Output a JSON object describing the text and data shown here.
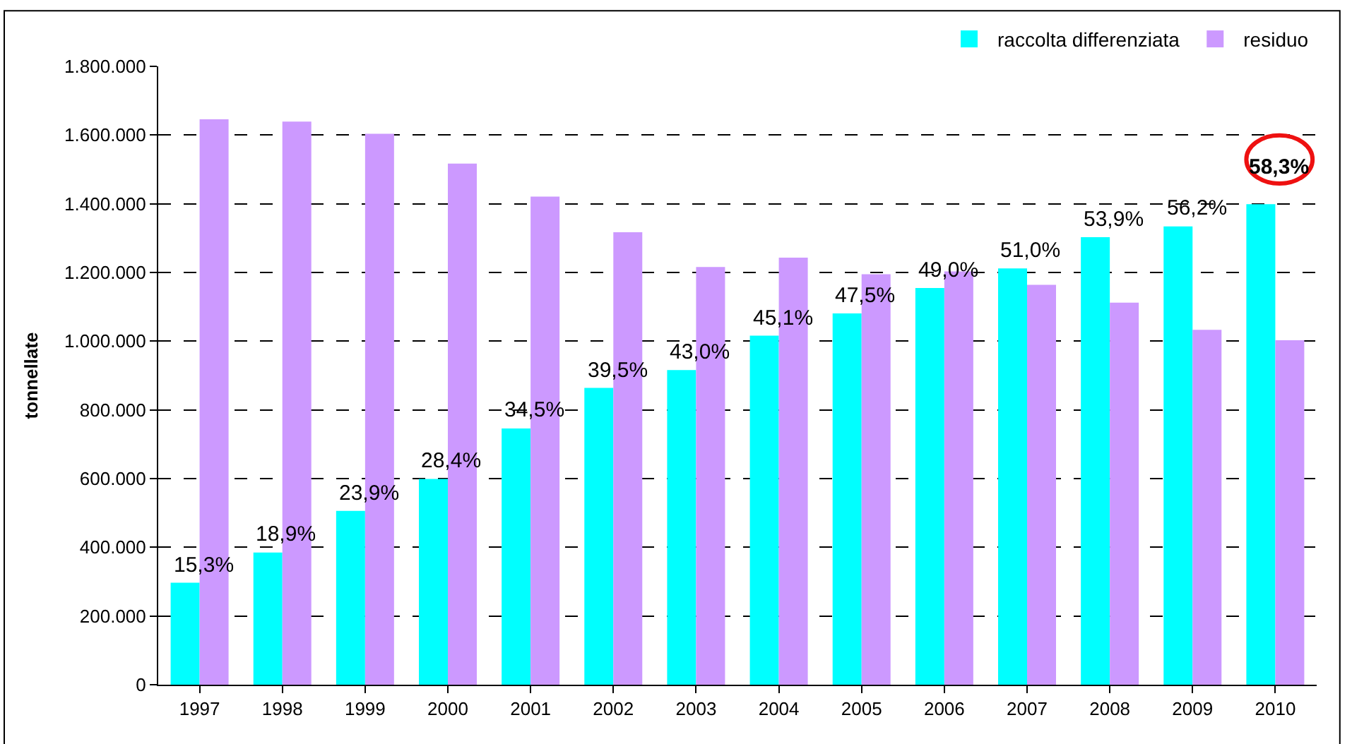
{
  "chart_data": {
    "type": "bar",
    "ylabel": "tonnellate",
    "categories": [
      "1997",
      "1998",
      "1999",
      "2000",
      "2001",
      "2002",
      "2003",
      "2004",
      "2005",
      "2006",
      "2007",
      "2008",
      "2009",
      "2010"
    ],
    "series": [
      {
        "name": "raccolta differenziata",
        "color": "#00ffff",
        "values": [
          297000,
          385000,
          506000,
          599000,
          746000,
          864000,
          916000,
          1016000,
          1081000,
          1155000,
          1212000,
          1303000,
          1334000,
          1399000
        ]
      },
      {
        "name": "residuo",
        "color": "#cc99ff",
        "values": [
          1646000,
          1639000,
          1604000,
          1517000,
          1421000,
          1317000,
          1216000,
          1243000,
          1195000,
          1203000,
          1164000,
          1112000,
          1033000,
          1003000
        ]
      }
    ],
    "ylim": [
      0,
      1800000
    ],
    "yticks": [
      {
        "value": 0,
        "label": "0"
      },
      {
        "value": 200000,
        "label": "200.000"
      },
      {
        "value": 400000,
        "label": "400.000"
      },
      {
        "value": 600000,
        "label": "600.000"
      },
      {
        "value": 800000,
        "label": "800.000"
      },
      {
        "value": 1000000,
        "label": "1.000.000"
      },
      {
        "value": 1200000,
        "label": "1.200.000"
      },
      {
        "value": 1400000,
        "label": "1.400.000"
      },
      {
        "value": 1600000,
        "label": "1.600.000"
      },
      {
        "value": 1800000,
        "label": "1.800.000"
      }
    ],
    "grid": "y",
    "legend": "top right",
    "annotations": [
      {
        "text": "15,3%",
        "x": "1997",
        "y": 297000
      },
      {
        "text": "18,9%",
        "x": "1998",
        "y": 385000
      },
      {
        "text": "23,9%",
        "x": "1999",
        "y": 506000
      },
      {
        "text": "28,4%",
        "x": "2000",
        "y": 599000
      },
      {
        "text": "34,5%",
        "x": "2001",
        "y": 746000
      },
      {
        "text": "39,5%",
        "x": "2002",
        "y": 864000
      },
      {
        "text": "43,0%",
        "x": "2003",
        "y": 916000
      },
      {
        "text": "45,1%",
        "x": "2004",
        "y": 1016000
      },
      {
        "text": "47,5%",
        "x": "2005",
        "y": 1081000
      },
      {
        "text": "49,0%",
        "x": "2006",
        "y": 1155000
      },
      {
        "text": "51,0%",
        "x": "2007",
        "y": 1212000
      },
      {
        "text": "53,9%",
        "x": "2008",
        "y": 1303000
      },
      {
        "text": "56,2%",
        "x": "2009",
        "y": 1334000
      },
      {
        "text": "58,3%",
        "x": "2010",
        "y": 1399000
      }
    ]
  }
}
